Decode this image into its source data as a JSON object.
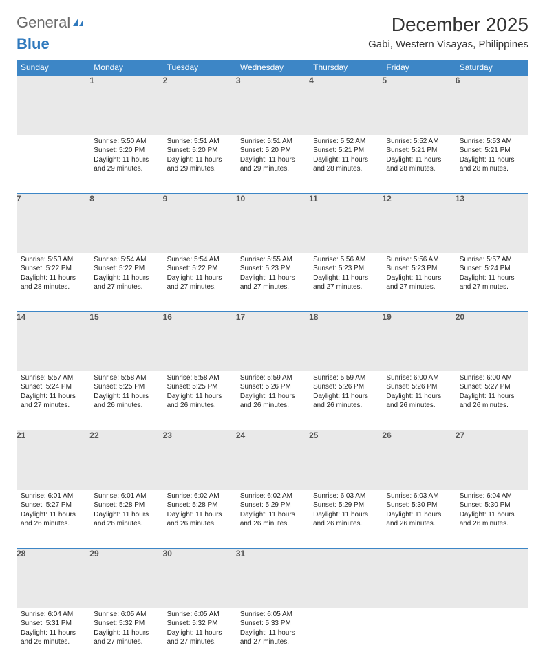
{
  "brand": {
    "part1": "General",
    "part2": "Blue"
  },
  "title": "December 2025",
  "location": "Gabi, Western Visayas, Philippines",
  "colors": {
    "header_bg": "#3d86c6",
    "header_text": "#ffffff",
    "daynum_bg": "#e9e9e9",
    "daynum_text": "#555555",
    "border": "#3d86c6",
    "body_text": "#222222",
    "title_text": "#333333",
    "logo_gray": "#6a6a6a",
    "logo_blue": "#2f79bd",
    "page_bg": "#ffffff"
  },
  "fonts": {
    "family": "Arial",
    "title_size_pt": 21,
    "location_size_pt": 11,
    "header_size_pt": 9,
    "daynum_size_pt": 9,
    "body_size_pt": 7.5
  },
  "weekdays": [
    "Sunday",
    "Monday",
    "Tuesday",
    "Wednesday",
    "Thursday",
    "Friday",
    "Saturday"
  ],
  "weeks": [
    [
      null,
      {
        "n": "1",
        "sr": "5:50 AM",
        "ss": "5:20 PM",
        "dl": "11 hours and 29 minutes."
      },
      {
        "n": "2",
        "sr": "5:51 AM",
        "ss": "5:20 PM",
        "dl": "11 hours and 29 minutes."
      },
      {
        "n": "3",
        "sr": "5:51 AM",
        "ss": "5:20 PM",
        "dl": "11 hours and 29 minutes."
      },
      {
        "n": "4",
        "sr": "5:52 AM",
        "ss": "5:21 PM",
        "dl": "11 hours and 28 minutes."
      },
      {
        "n": "5",
        "sr": "5:52 AM",
        "ss": "5:21 PM",
        "dl": "11 hours and 28 minutes."
      },
      {
        "n": "6",
        "sr": "5:53 AM",
        "ss": "5:21 PM",
        "dl": "11 hours and 28 minutes."
      }
    ],
    [
      {
        "n": "7",
        "sr": "5:53 AM",
        "ss": "5:22 PM",
        "dl": "11 hours and 28 minutes."
      },
      {
        "n": "8",
        "sr": "5:54 AM",
        "ss": "5:22 PM",
        "dl": "11 hours and 27 minutes."
      },
      {
        "n": "9",
        "sr": "5:54 AM",
        "ss": "5:22 PM",
        "dl": "11 hours and 27 minutes."
      },
      {
        "n": "10",
        "sr": "5:55 AM",
        "ss": "5:23 PM",
        "dl": "11 hours and 27 minutes."
      },
      {
        "n": "11",
        "sr": "5:56 AM",
        "ss": "5:23 PM",
        "dl": "11 hours and 27 minutes."
      },
      {
        "n": "12",
        "sr": "5:56 AM",
        "ss": "5:23 PM",
        "dl": "11 hours and 27 minutes."
      },
      {
        "n": "13",
        "sr": "5:57 AM",
        "ss": "5:24 PM",
        "dl": "11 hours and 27 minutes."
      }
    ],
    [
      {
        "n": "14",
        "sr": "5:57 AM",
        "ss": "5:24 PM",
        "dl": "11 hours and 27 minutes."
      },
      {
        "n": "15",
        "sr": "5:58 AM",
        "ss": "5:25 PM",
        "dl": "11 hours and 26 minutes."
      },
      {
        "n": "16",
        "sr": "5:58 AM",
        "ss": "5:25 PM",
        "dl": "11 hours and 26 minutes."
      },
      {
        "n": "17",
        "sr": "5:59 AM",
        "ss": "5:26 PM",
        "dl": "11 hours and 26 minutes."
      },
      {
        "n": "18",
        "sr": "5:59 AM",
        "ss": "5:26 PM",
        "dl": "11 hours and 26 minutes."
      },
      {
        "n": "19",
        "sr": "6:00 AM",
        "ss": "5:26 PM",
        "dl": "11 hours and 26 minutes."
      },
      {
        "n": "20",
        "sr": "6:00 AM",
        "ss": "5:27 PM",
        "dl": "11 hours and 26 minutes."
      }
    ],
    [
      {
        "n": "21",
        "sr": "6:01 AM",
        "ss": "5:27 PM",
        "dl": "11 hours and 26 minutes."
      },
      {
        "n": "22",
        "sr": "6:01 AM",
        "ss": "5:28 PM",
        "dl": "11 hours and 26 minutes."
      },
      {
        "n": "23",
        "sr": "6:02 AM",
        "ss": "5:28 PM",
        "dl": "11 hours and 26 minutes."
      },
      {
        "n": "24",
        "sr": "6:02 AM",
        "ss": "5:29 PM",
        "dl": "11 hours and 26 minutes."
      },
      {
        "n": "25",
        "sr": "6:03 AM",
        "ss": "5:29 PM",
        "dl": "11 hours and 26 minutes."
      },
      {
        "n": "26",
        "sr": "6:03 AM",
        "ss": "5:30 PM",
        "dl": "11 hours and 26 minutes."
      },
      {
        "n": "27",
        "sr": "6:04 AM",
        "ss": "5:30 PM",
        "dl": "11 hours and 26 minutes."
      }
    ],
    [
      {
        "n": "28",
        "sr": "6:04 AM",
        "ss": "5:31 PM",
        "dl": "11 hours and 26 minutes."
      },
      {
        "n": "29",
        "sr": "6:05 AM",
        "ss": "5:32 PM",
        "dl": "11 hours and 27 minutes."
      },
      {
        "n": "30",
        "sr": "6:05 AM",
        "ss": "5:32 PM",
        "dl": "11 hours and 27 minutes."
      },
      {
        "n": "31",
        "sr": "6:05 AM",
        "ss": "5:33 PM",
        "dl": "11 hours and 27 minutes."
      },
      null,
      null,
      null
    ]
  ],
  "labels": {
    "sunrise": "Sunrise:",
    "sunset": "Sunset:",
    "daylight": "Daylight:"
  }
}
